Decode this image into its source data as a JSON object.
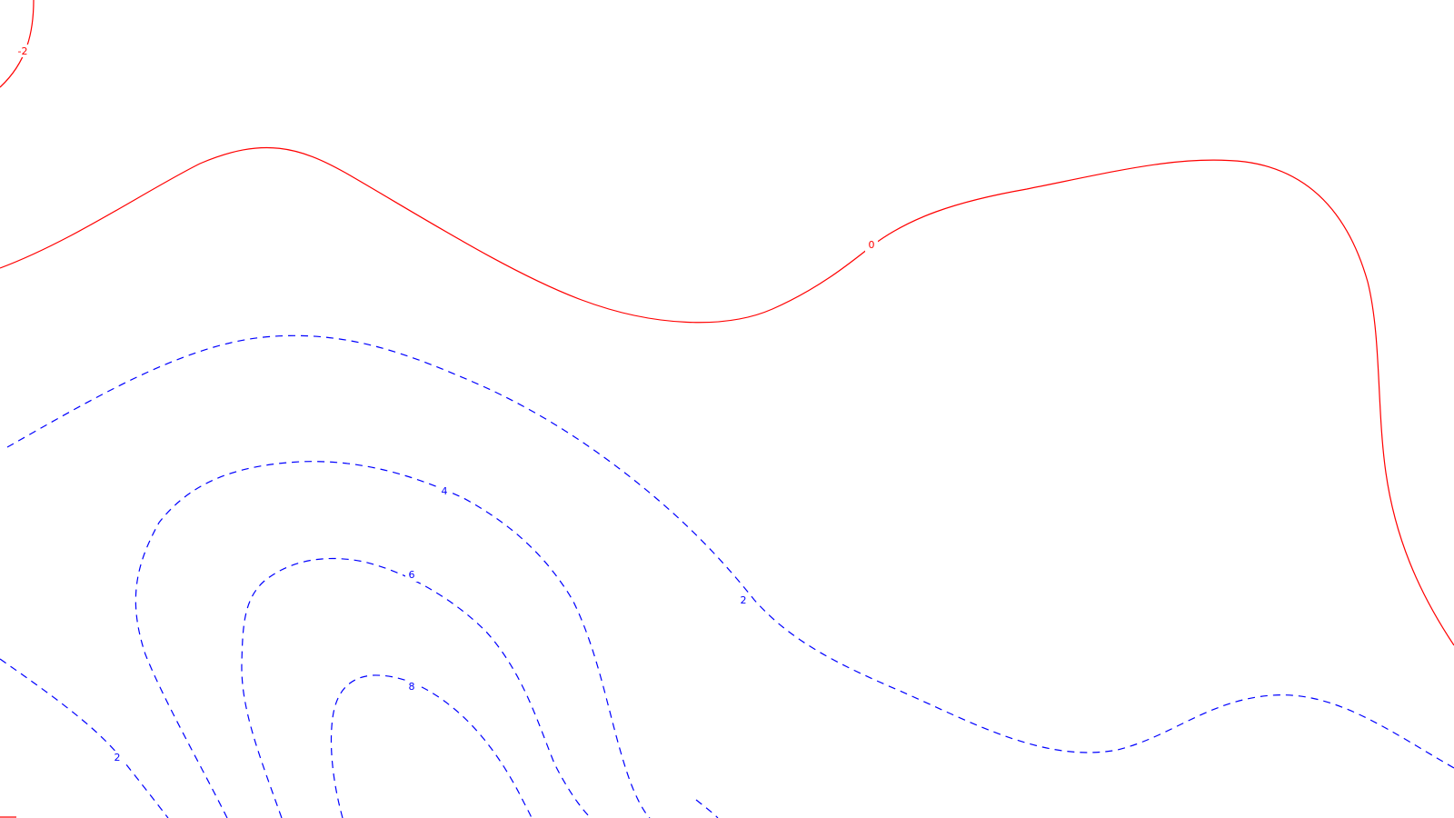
{
  "chart_data": {
    "type": "contour",
    "title": "",
    "xlabel": "",
    "ylabel": "",
    "grid": false,
    "legend": "none",
    "colors": {
      "negative_or_zero": "#ff0000",
      "positive": "#0000ff"
    },
    "line_styles": {
      "negative_or_zero": "solid",
      "positive": "dashed"
    },
    "contours": [
      {
        "level": -2,
        "label": "-2"
      },
      {
        "level": 0,
        "label": "0"
      },
      {
        "level": 2,
        "label": "2"
      },
      {
        "level": 4,
        "label": "4"
      },
      {
        "level": 6,
        "label": "6"
      },
      {
        "level": 8,
        "label": "8"
      }
    ]
  }
}
